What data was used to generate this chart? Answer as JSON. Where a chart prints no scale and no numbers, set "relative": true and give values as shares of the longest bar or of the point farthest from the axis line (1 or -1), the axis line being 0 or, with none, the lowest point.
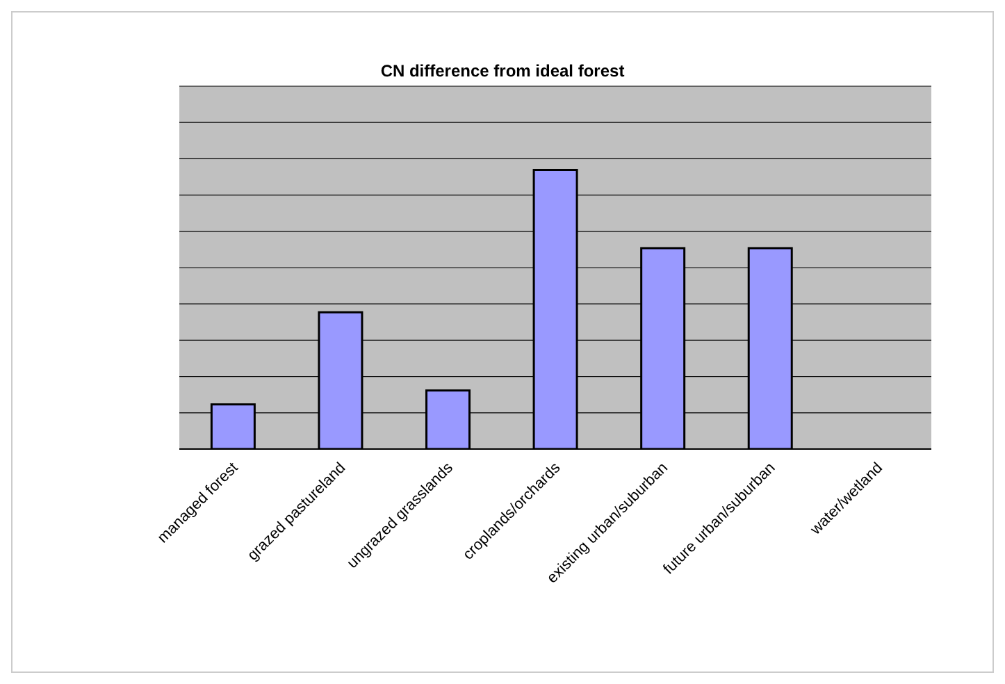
{
  "chart_data": {
    "type": "bar",
    "title": "CN difference from ideal forest",
    "relative": true,
    "categories": [
      "managed forest",
      "grazed pastureland",
      "ungrazed grasslands",
      "croplands/orchards",
      "existing urban/suburban",
      "future urban/suburban",
      "water/wetland"
    ],
    "values": [
      0.16,
      0.49,
      0.21,
      1,
      0.72,
      0.72,
      0
    ],
    "color": "#9999ff",
    "grid": "y"
  }
}
